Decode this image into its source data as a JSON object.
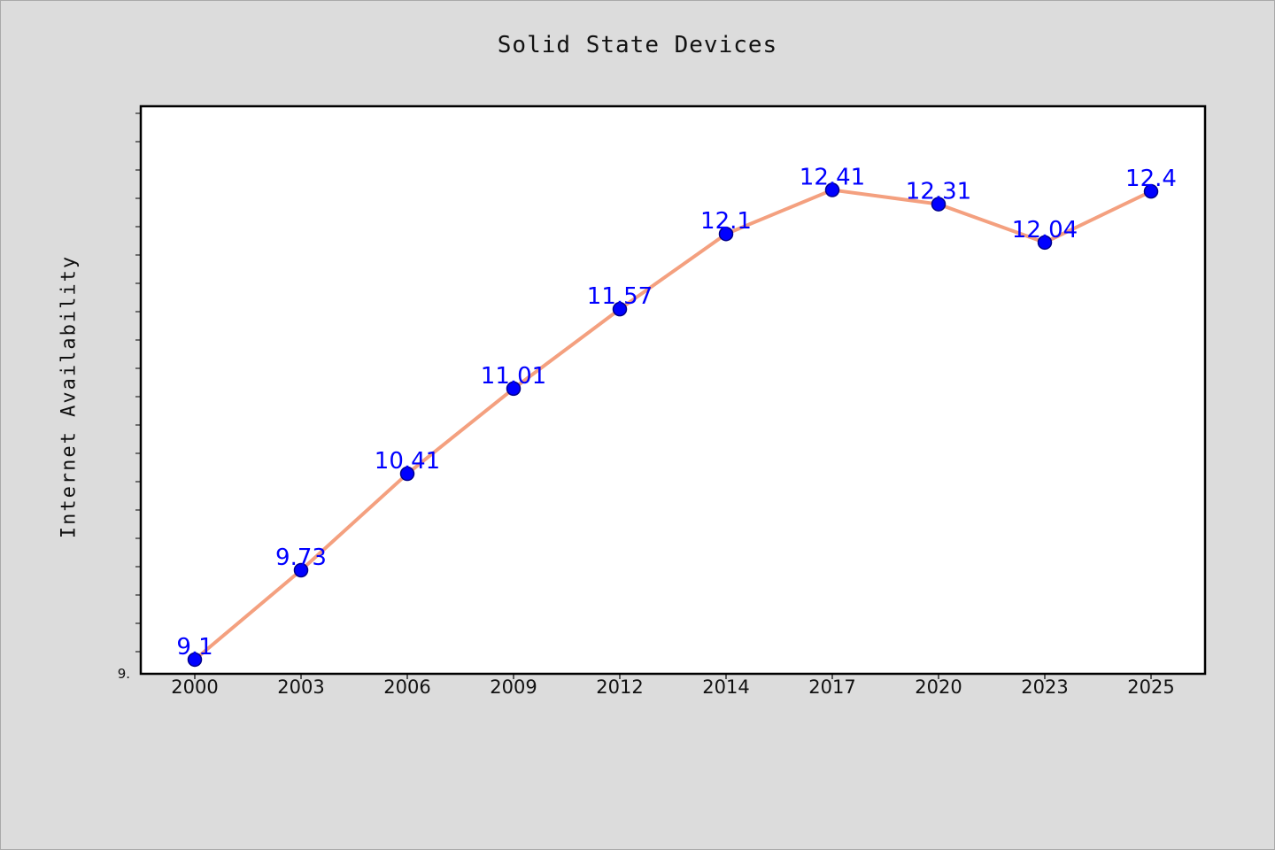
{
  "chart_data": {
    "type": "line",
    "title": "Solid State Devices",
    "xlabel": "",
    "ylabel": "Internet Availability",
    "categories": [
      "2000",
      "2003",
      "2006",
      "2009",
      "2012",
      "2014",
      "2017",
      "2020",
      "2023",
      "2025"
    ],
    "series": [
      {
        "values": [
          9.1,
          9.73,
          10.41,
          11.01,
          11.57,
          12.1,
          12.41,
          12.31,
          12.04,
          12.4
        ]
      }
    ],
    "data_labels": [
      "9.1",
      "9.73",
      "10.41",
      "11.01",
      "11.57",
      "12.1",
      "12.41",
      "12.31",
      "12.04",
      "12.4"
    ],
    "y_tick_labels": [
      "9."
    ],
    "ylim": [
      9.0,
      13.0
    ],
    "grid": false,
    "colors": {
      "line": "#f4a07f",
      "marker_fill": "#0000ff",
      "marker_stroke": "#00008b",
      "data_label": "#0000ff",
      "plot_background": "#ffffff",
      "page_background": "#dcdcdc"
    }
  }
}
